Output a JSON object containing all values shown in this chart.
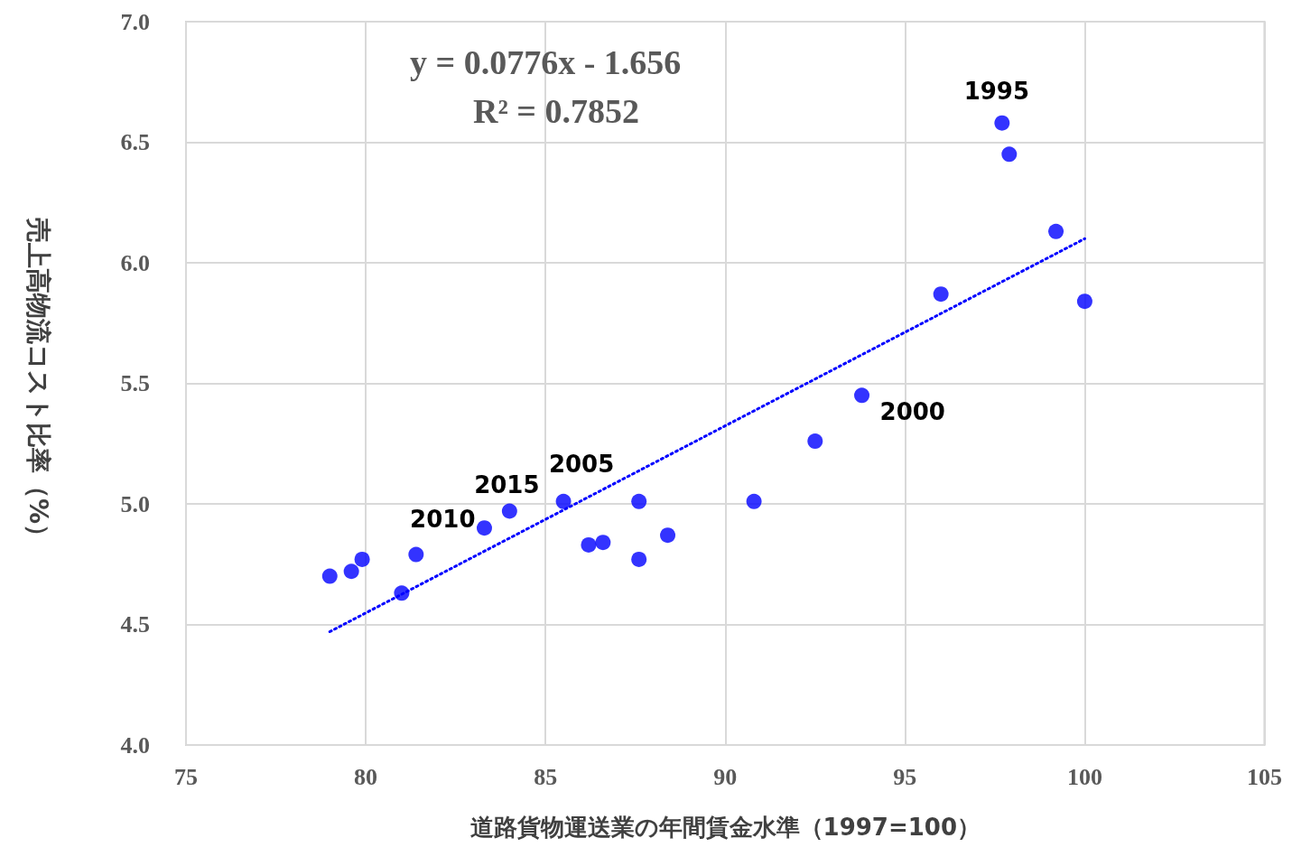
{
  "chart_data": {
    "type": "scatter",
    "xlabel": "道路貨物運送業の年間賃金水準（1997=100）",
    "ylabel": "売上高物流コスト比率（%）",
    "xlim": [
      75,
      105
    ],
    "xticks": [
      75,
      80,
      85,
      90,
      95,
      100,
      105
    ],
    "ylim": [
      4.0,
      7.0
    ],
    "yticks": [
      {
        "value": 4.0,
        "label": "4.0"
      },
      {
        "value": 4.5,
        "label": "4.5"
      },
      {
        "value": 5.0,
        "label": "5.0"
      },
      {
        "value": 5.5,
        "label": "5.5"
      },
      {
        "value": 6.0,
        "label": "6.0"
      },
      {
        "value": 6.5,
        "label": "6.5"
      },
      {
        "value": 7.0,
        "label": "7.0"
      }
    ],
    "grid": true,
    "marker": "circle",
    "series": [
      {
        "color": "#0000ff",
        "x": [
          79.0,
          79.6,
          79.9,
          81.0,
          81.4,
          83.3,
          84.0,
          85.5,
          86.2,
          86.6,
          87.6,
          87.6,
          88.4,
          90.8,
          92.5,
          93.8,
          96.0,
          97.7,
          97.9,
          99.2,
          100.0
        ],
        "values": [
          4.7,
          4.72,
          4.77,
          4.63,
          4.79,
          4.9,
          4.97,
          5.01,
          4.83,
          4.84,
          5.01,
          4.77,
          4.87,
          5.01,
          5.26,
          5.45,
          5.87,
          6.58,
          6.45,
          6.13,
          5.84
        ]
      },
      {
        "type": "line",
        "color": "#0000ff",
        "line_style": "dotted",
        "marker": "none",
        "x": [
          79.0,
          100.0
        ],
        "values": [
          4.47,
          6.1
        ]
      }
    ],
    "annotations": [
      "y = 0.0776x - 1.656",
      "R² = 0.7852",
      {
        "text": "1995",
        "x": 97.7,
        "y": 6.58
      },
      {
        "text": "2000",
        "x": 93.8,
        "y": 5.45
      },
      {
        "text": "2005",
        "x": 85.5,
        "y": 5.01
      },
      {
        "text": "2010",
        "x": 83.3,
        "y": 4.9
      },
      {
        "text": "2015",
        "x": 84.0,
        "y": 4.97
      }
    ]
  }
}
